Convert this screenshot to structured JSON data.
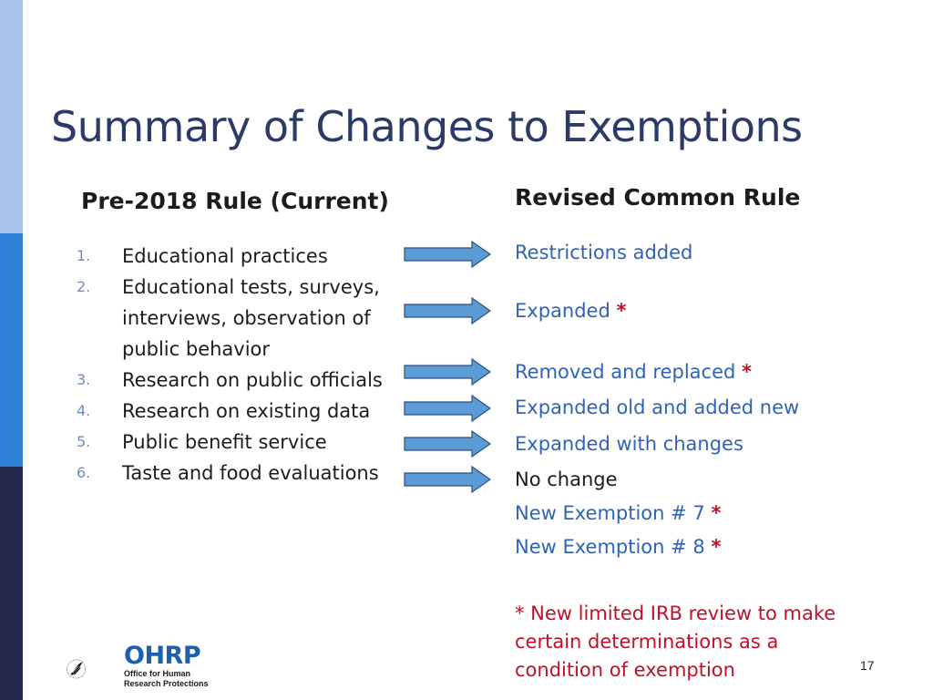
{
  "slide": {
    "title": "Summary of Changes to Exemptions",
    "page_number": "17"
  },
  "left_column": {
    "heading": "Pre-2018 Rule (Current)",
    "items": [
      {
        "num": "1.",
        "lines": [
          "Educational practices"
        ]
      },
      {
        "num": "2.",
        "lines": [
          "Educational tests, surveys,",
          "interviews, observation of",
          "public behavior"
        ]
      },
      {
        "num": "3.",
        "lines": [
          "Research on public officials"
        ]
      },
      {
        "num": "4.",
        "lines": [
          "Research on existing data"
        ]
      },
      {
        "num": "5.",
        "lines": [
          "Public benefit service"
        ]
      },
      {
        "num": "6.",
        "lines": [
          "Taste and food evaluations"
        ]
      }
    ]
  },
  "right_column": {
    "heading": "Revised Common Rule",
    "items": [
      {
        "text": "Restrictions added",
        "star": ""
      },
      {
        "text": "Expanded ",
        "star": "*"
      },
      {
        "text": "Removed and replaced ",
        "star": "*"
      },
      {
        "text": "Expanded old and added new",
        "star": ""
      },
      {
        "text": "Expanded with changes",
        "star": ""
      },
      {
        "text": "No change",
        "star": ""
      },
      {
        "text": "New Exemption # 7 ",
        "star": "*"
      },
      {
        "text": "New Exemption # 8 ",
        "star": "*"
      }
    ],
    "footnote": "* New limited IRB review to make certain determinations as a condition of exemption"
  },
  "logo": {
    "name": "OHRP",
    "subtitle_1": "Office for Human",
    "subtitle_2": "Research Protections"
  },
  "colors": {
    "title": "#2b3a67",
    "accent_blue": "#2e63b8",
    "star_red": "#c0102a",
    "arrow_fill": "#5b9bd5",
    "arrow_stroke": "#2f4f7f"
  }
}
